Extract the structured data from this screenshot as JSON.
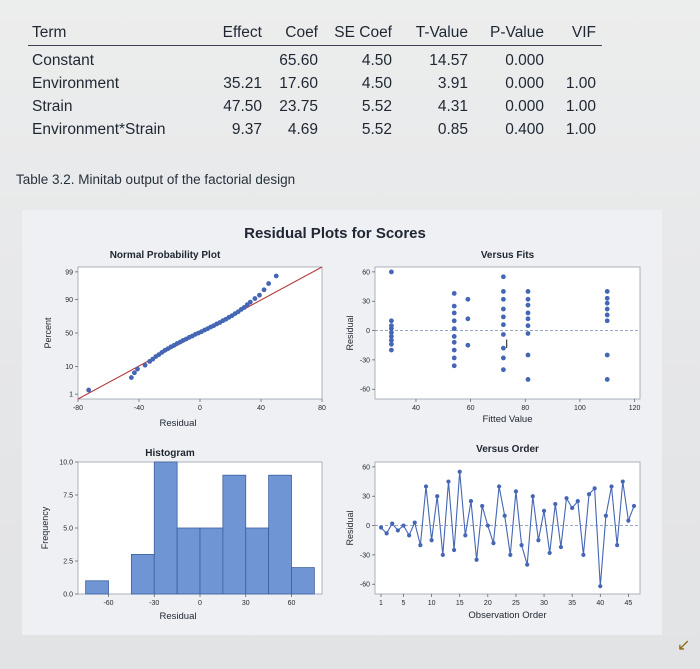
{
  "table": {
    "headers": [
      "Term",
      "Effect",
      "Coef",
      "SE Coef",
      "T-Value",
      "P-Value",
      "VIF"
    ],
    "rows": [
      [
        "Constant",
        "",
        "65.60",
        "4.50",
        "14.57",
        "0.000",
        ""
      ],
      [
        "Environment",
        "35.21",
        "17.60",
        "4.50",
        "3.91",
        "0.000",
        "1.00"
      ],
      [
        "Strain",
        "47.50",
        "23.75",
        "5.52",
        "4.31",
        "0.000",
        "1.00"
      ],
      [
        "Environment*Strain",
        "9.37",
        "4.69",
        "5.52",
        "0.85",
        "0.400",
        "1.00"
      ]
    ]
  },
  "caption": "Table 3.2. Minitab output of the factorial design",
  "figure_title": "Residual Plots for Scores",
  "colors": {
    "point": "#4466b4",
    "line": "#4466b4",
    "fit_line": "#b33b3b",
    "bar": "#6f95d4",
    "bar_edge": "#3c5f9f",
    "ref_line": "#8899bb"
  },
  "chart_data": [
    {
      "type": "scatter",
      "title": "Normal Probability Plot",
      "xlabel": "Residual",
      "ylabel": "Percent",
      "xlim": [
        -80,
        80
      ],
      "x_ticks": [
        "-80",
        "-40",
        "0",
        "40",
        "80"
      ],
      "y_ticks": [
        "1",
        "10",
        "50",
        "90",
        "99"
      ],
      "x": [
        -73,
        -45,
        -43,
        -41,
        -36,
        -33,
        -31,
        -29,
        -27,
        -25,
        -23,
        -21,
        -19,
        -17,
        -15,
        -13,
        -11,
        -9,
        -7,
        -5,
        -3,
        -1,
        1,
        3,
        5,
        7,
        9,
        11,
        13,
        15,
        17,
        19,
        21,
        23,
        25,
        27,
        29,
        31,
        33,
        36,
        39,
        42,
        45,
        50
      ],
      "percent": [
        1.5,
        4.5,
        6.5,
        8.5,
        11,
        14,
        16,
        18.5,
        20.5,
        23,
        25.5,
        27.5,
        30,
        32,
        34.5,
        36.5,
        39,
        41,
        43.5,
        45.5,
        48,
        50,
        52,
        54.5,
        56.5,
        59,
        61,
        63.5,
        65.5,
        68,
        70,
        72.5,
        74.5,
        77,
        79,
        81.5,
        83.5,
        86,
        88,
        90.5,
        92.5,
        95,
        97,
        98.5
      ]
    },
    {
      "type": "scatter",
      "title": "Versus Fits",
      "xlabel": "Fitted Value",
      "ylabel": "Residual",
      "xlim": [
        25,
        122
      ],
      "ylim": [
        -70,
        65
      ],
      "x_ticks": [
        "40",
        "60",
        "80",
        "100",
        "120"
      ],
      "y_ticks": [
        "60",
        "30",
        "0",
        "-30",
        "-60"
      ],
      "x": [
        31,
        31,
        31,
        31,
        31,
        31,
        31,
        31,
        31,
        54,
        54,
        54,
        54,
        54,
        54,
        54,
        54,
        54,
        54,
        59,
        59,
        59,
        72,
        72,
        72,
        72,
        72,
        72,
        72,
        72,
        72,
        72,
        81,
        81,
        81,
        81,
        81,
        81,
        81,
        81,
        81,
        110,
        110,
        110,
        110,
        110,
        110,
        110,
        110
      ],
      "y": [
        60,
        10,
        5,
        2,
        -2,
        -6,
        -10,
        -14,
        -20,
        38,
        25,
        18,
        10,
        2,
        -6,
        -12,
        -20,
        -28,
        -36,
        32,
        12,
        -15,
        55,
        40,
        32,
        22,
        14,
        6,
        -4,
        -18,
        -28,
        -40,
        40,
        32,
        26,
        18,
        12,
        5,
        -3,
        -25,
        -50,
        40,
        33,
        28,
        22,
        16,
        10,
        -25,
        -50
      ]
    },
    {
      "type": "bar",
      "title": "Histogram",
      "xlabel": "Residual",
      "ylabel": "Frequency",
      "xlim": [
        -80,
        80
      ],
      "x_ticks": [
        "-60",
        "-30",
        "0",
        "30",
        "60"
      ],
      "ylim": [
        0,
        10
      ],
      "y_ticks": [
        "0.0",
        "2.5",
        "5.0",
        "7.5",
        "10.0"
      ],
      "bin_edges": [
        -75,
        -60,
        -45,
        -30,
        -15,
        0,
        15,
        30,
        45,
        60
      ],
      "values": [
        1,
        0,
        3,
        10,
        5,
        5,
        9,
        5,
        9,
        2
      ]
    },
    {
      "type": "line",
      "title": "Versus Order",
      "xlabel": "Observation Order",
      "ylabel": "Residual",
      "xlim": [
        1,
        47
      ],
      "ylim": [
        -70,
        65
      ],
      "x_ticks": [
        "1",
        "5",
        "10",
        "15",
        "20",
        "25",
        "30",
        "35",
        "40",
        "45"
      ],
      "y_ticks": [
        "60",
        "30",
        "0",
        "-30",
        "-60"
      ],
      "y": [
        -2,
        -8,
        2,
        -5,
        0,
        -10,
        3,
        -20,
        40,
        -15,
        30,
        -30,
        45,
        -25,
        55,
        -10,
        25,
        -35,
        20,
        0,
        -18,
        40,
        10,
        -30,
        35,
        -20,
        -40,
        30,
        -15,
        15,
        -28,
        22,
        -22,
        28,
        18,
        25,
        -30,
        32,
        38,
        -62,
        10,
        40,
        -20,
        45,
        5,
        20
      ]
    }
  ]
}
